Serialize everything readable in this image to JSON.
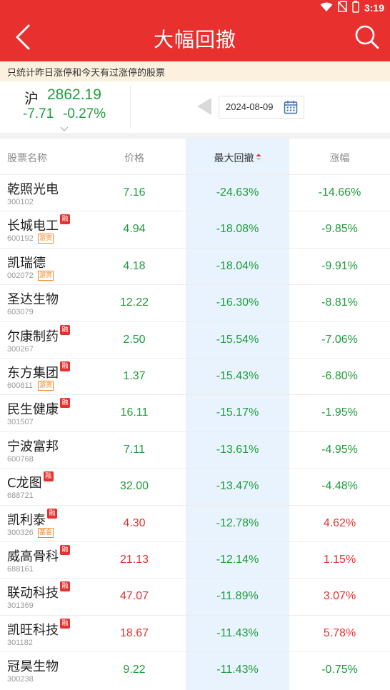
{
  "status_bar": {
    "time": "3:19",
    "icons": [
      "wifi-icon",
      "no-sim-icon",
      "battery-icon"
    ]
  },
  "header": {
    "title": "大幅回撤",
    "back_icon": "chevron-left-icon",
    "search_icon": "search-icon"
  },
  "notice": "只统计昨日涨停和今天有过涨停的股票",
  "index": {
    "name": "沪",
    "value": "2862.19",
    "change": "-7.71",
    "change_pct": "-0.27%"
  },
  "date": "2024-08-09",
  "colors": {
    "brand": "#e8312f",
    "up": "#e8312f",
    "down": "#1f9d3c",
    "tag": "#f08a2a",
    "highlight": "#e8f3fd"
  },
  "table": {
    "headers": {
      "name": "股票名称",
      "price": "价格",
      "drawdown": "最大回撤",
      "change": "涨幅"
    },
    "rows": [
      {
        "name": "乾照光电",
        "code": "300102",
        "rong": false,
        "tag": "",
        "price": "7.16",
        "drawdown": "-24.63%",
        "change": "-14.66%",
        "dir": "down"
      },
      {
        "name": "长城电工",
        "code": "600192",
        "rong": true,
        "tag": "游资",
        "price": "4.94",
        "drawdown": "-18.08%",
        "change": "-9.85%",
        "dir": "down"
      },
      {
        "name": "凯瑞德",
        "code": "002072",
        "rong": false,
        "tag": "游资",
        "price": "4.18",
        "drawdown": "-18.04%",
        "change": "-9.91%",
        "dir": "down"
      },
      {
        "name": "圣达生物",
        "code": "603079",
        "rong": false,
        "tag": "",
        "price": "12.22",
        "drawdown": "-16.30%",
        "change": "-8.81%",
        "dir": "down"
      },
      {
        "name": "尔康制药",
        "code": "300267",
        "rong": true,
        "tag": "",
        "price": "2.50",
        "drawdown": "-15.54%",
        "change": "-7.06%",
        "dir": "down"
      },
      {
        "name": "东方集团",
        "code": "600811",
        "rong": true,
        "tag": "游资",
        "price": "1.37",
        "drawdown": "-15.43%",
        "change": "-6.80%",
        "dir": "down"
      },
      {
        "name": "民生健康",
        "code": "301507",
        "rong": true,
        "tag": "",
        "price": "16.11",
        "drawdown": "-15.17%",
        "change": "-1.95%",
        "dir": "down"
      },
      {
        "name": "宁波富邦",
        "code": "600768",
        "rong": false,
        "tag": "",
        "price": "7.11",
        "drawdown": "-13.61%",
        "change": "-4.95%",
        "dir": "down"
      },
      {
        "name": "C龙图",
        "code": "688721",
        "rong": true,
        "tag": "",
        "price": "32.00",
        "drawdown": "-13.47%",
        "change": "-4.48%",
        "dir": "down"
      },
      {
        "name": "凯利泰",
        "code": "300326",
        "rong": true,
        "tag": "基金",
        "price": "4.30",
        "drawdown": "-12.78%",
        "change": "4.62%",
        "dir": "up"
      },
      {
        "name": "威高骨科",
        "code": "688161",
        "rong": true,
        "tag": "",
        "price": "21.13",
        "drawdown": "-12.14%",
        "change": "1.15%",
        "dir": "up"
      },
      {
        "name": "联动科技",
        "code": "301369",
        "rong": true,
        "tag": "",
        "price": "47.07",
        "drawdown": "-11.89%",
        "change": "3.07%",
        "dir": "up"
      },
      {
        "name": "凯旺科技",
        "code": "301182",
        "rong": true,
        "tag": "",
        "price": "18.67",
        "drawdown": "-11.43%",
        "change": "5.78%",
        "dir": "up"
      },
      {
        "name": "冠昊生物",
        "code": "300238",
        "rong": false,
        "tag": "",
        "price": "9.22",
        "drawdown": "-11.43%",
        "change": "-0.75%",
        "dir": "down"
      }
    ],
    "rong_label": "融"
  }
}
